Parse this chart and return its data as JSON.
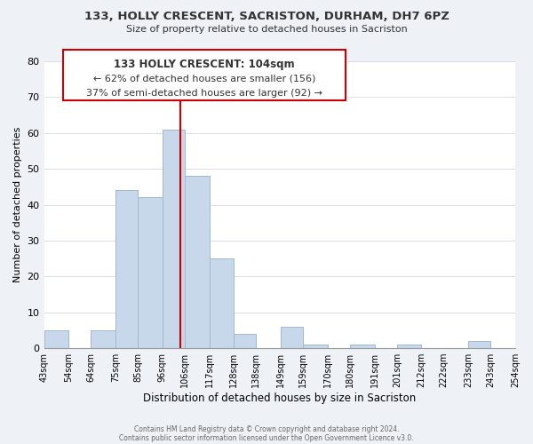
{
  "title_line1": "133, HOLLY CRESCENT, SACRISTON, DURHAM, DH7 6PZ",
  "title_line2": "Size of property relative to detached houses in Sacriston",
  "xlabel": "Distribution of detached houses by size in Sacriston",
  "ylabel": "Number of detached properties",
  "bar_color": "#c8d8eb",
  "bar_edge_color": "#a0b8d0",
  "bin_edges": [
    43,
    54,
    64,
    75,
    85,
    96,
    106,
    117,
    128,
    138,
    149,
    159,
    170,
    180,
    191,
    201,
    212,
    222,
    233,
    243,
    254
  ],
  "bar_heights": [
    5,
    0,
    5,
    44,
    42,
    61,
    48,
    25,
    4,
    0,
    6,
    1,
    0,
    1,
    0,
    1,
    0,
    0,
    2,
    0
  ],
  "tick_labels": [
    "43sqm",
    "54sqm",
    "64sqm",
    "75sqm",
    "85sqm",
    "96sqm",
    "106sqm",
    "117sqm",
    "128sqm",
    "138sqm",
    "149sqm",
    "159sqm",
    "170sqm",
    "180sqm",
    "191sqm",
    "201sqm",
    "212sqm",
    "222sqm",
    "233sqm",
    "243sqm",
    "254sqm"
  ],
  "ylim": [
    0,
    80
  ],
  "yticks": [
    0,
    10,
    20,
    30,
    40,
    50,
    60,
    70,
    80
  ],
  "reference_line_x": 104,
  "reference_line_color": "#cc0000",
  "annotation_title": "133 HOLLY CRESCENT: 104sqm",
  "annotation_line1": "← 62% of detached houses are smaller (156)",
  "annotation_line2": "37% of semi-detached houses are larger (92) →",
  "footer_line1": "Contains HM Land Registry data © Crown copyright and database right 2024.",
  "footer_line2": "Contains public sector information licensed under the Open Government Licence v3.0.",
  "background_color": "#eef2f7",
  "plot_bg_color": "#ffffff"
}
